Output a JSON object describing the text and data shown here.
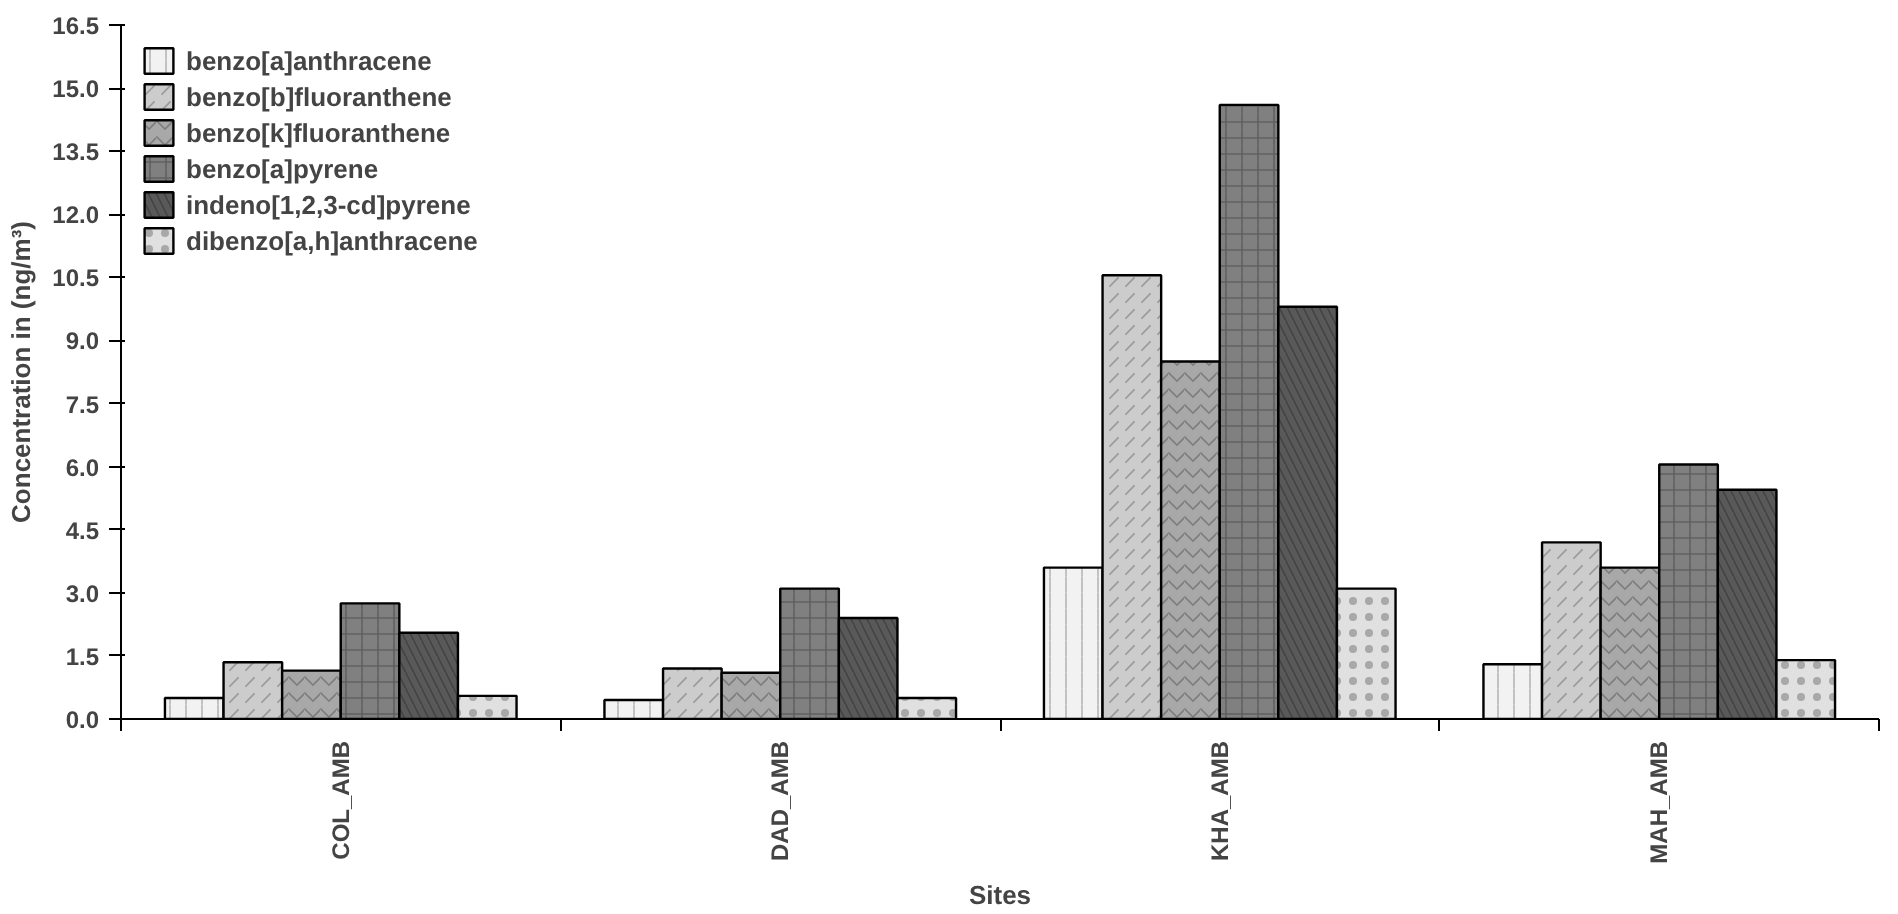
{
  "chart_data": {
    "type": "bar",
    "xlabel": "Sites",
    "ylabel": "Concentration in (ng/m³)",
    "categories": [
      "COL_AMB",
      "DAD_AMB",
      "KHA_AMB",
      "MAH_AMB"
    ],
    "series": [
      {
        "name": "benzo[a]anthracene",
        "color": "#f2f2f2",
        "values": [
          0.5,
          0.45,
          3.6,
          1.3
        ]
      },
      {
        "name": "benzo[b]fluoranthene",
        "color": "#cccccc",
        "values": [
          1.35,
          1.2,
          10.55,
          4.2
        ]
      },
      {
        "name": "benzo[k]fluoranthene",
        "color": "#a8a8a8",
        "values": [
          1.15,
          1.1,
          8.5,
          3.6
        ]
      },
      {
        "name": "benzo[a]pyrene",
        "color": "#808080",
        "values": [
          2.75,
          3.1,
          14.6,
          6.05
        ]
      },
      {
        "name": "indeno[1,2,3-cd]pyrene",
        "color": "#595959",
        "values": [
          2.05,
          2.4,
          9.8,
          5.45
        ]
      },
      {
        "name": "dibenzo[a,h]anthracene",
        "color": "#e0e0e0",
        "values": [
          0.55,
          0.5,
          3.1,
          1.4
        ]
      }
    ],
    "ylim": [
      0,
      16.5
    ],
    "yticks": [
      {
        "value": 0,
        "label": "0.0"
      },
      {
        "value": 1.5,
        "label": "1.5"
      },
      {
        "value": 3,
        "label": "3.0"
      },
      {
        "value": 4.5,
        "label": "4.5"
      },
      {
        "value": 6,
        "label": "6.0"
      },
      {
        "value": 7.5,
        "label": "7.5"
      },
      {
        "value": 9,
        "label": "9.0"
      },
      {
        "value": 10.5,
        "label": "10.5"
      },
      {
        "value": 12,
        "label": "12.0"
      },
      {
        "value": 13.5,
        "label": "13.5"
      },
      {
        "value": 15,
        "label": "15.0"
      },
      {
        "value": 16.5,
        "label": "16.5"
      }
    ],
    "grid": false,
    "legend": "top left"
  }
}
